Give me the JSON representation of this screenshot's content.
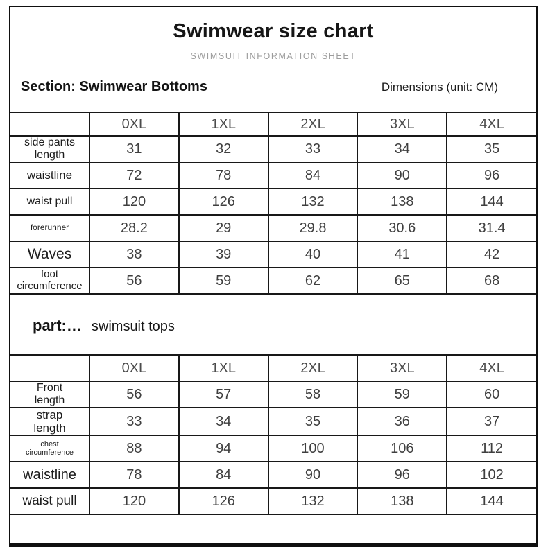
{
  "page": {
    "title": "Swimwear size chart",
    "subtitle": "SWIMSUIT INFORMATION SHEET",
    "section_bottoms": "Section: Swimwear Bottoms",
    "dimensions_note": "Dimensions (unit: CM)",
    "section_tops_prefix": "part:…",
    "section_tops": "swimsuit tops",
    "unit": "CM"
  },
  "bottoms": {
    "sizes": [
      "0XL",
      "1XL",
      "2XL",
      "3XL",
      "4XL"
    ],
    "rows": [
      {
        "label": "side pants\nlength",
        "values": [
          "31",
          "32",
          "33",
          "34",
          "35"
        ]
      },
      {
        "label": "waistline",
        "values": [
          "72",
          "78",
          "84",
          "90",
          "96"
        ]
      },
      {
        "label": "waist pull",
        "values": [
          "120",
          "126",
          "132",
          "138",
          "144"
        ]
      },
      {
        "label": "forerunner",
        "values": [
          "28.2",
          "29",
          "29.8",
          "30.6",
          "31.4"
        ]
      },
      {
        "label": "Waves",
        "values": [
          "38",
          "39",
          "40",
          "41",
          "42"
        ]
      },
      {
        "label": "foot\ncircumference",
        "values": [
          "56",
          "59",
          "62",
          "65",
          "68"
        ]
      }
    ]
  },
  "tops": {
    "sizes": [
      "0XL",
      "1XL",
      "2XL",
      "3XL",
      "4XL"
    ],
    "rows": [
      {
        "label": "Front\nlength",
        "values": [
          "56",
          "57",
          "58",
          "59",
          "60"
        ]
      },
      {
        "label": "strap\nlength",
        "values": [
          "33",
          "34",
          "35",
          "36",
          "37"
        ]
      },
      {
        "label": "chest\ncircumference",
        "values": [
          "88",
          "94",
          "100",
          "106",
          "112"
        ]
      },
      {
        "label": "waistline",
        "values": [
          "78",
          "84",
          "90",
          "96",
          "102"
        ]
      },
      {
        "label": "waist pull",
        "values": [
          "120",
          "126",
          "132",
          "138",
          "144"
        ]
      }
    ]
  }
}
